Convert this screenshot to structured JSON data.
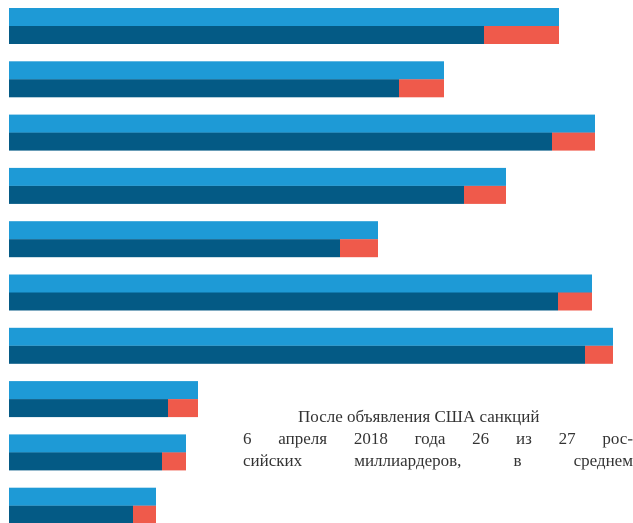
{
  "chart_data": {
    "type": "bar",
    "orientation": "horizontal",
    "xlim": [
      0,
      604
    ],
    "series": [
      {
        "color": "#1e9ad6",
        "values": [
          550,
          435,
          586,
          497,
          369,
          583,
          604,
          189,
          177,
          147
        ]
      },
      {
        "color": "#045a85",
        "values": [
          475,
          390,
          543,
          455,
          331,
          549,
          576,
          159,
          153,
          124
        ]
      },
      {
        "color": "#ef5a4b",
        "values": [
          75,
          45,
          43,
          42,
          38,
          34,
          28,
          30,
          24,
          23
        ]
      }
    ]
  },
  "text": {
    "lines": [
      "После объявления США санкций",
      "6 апреля 2018 года 26 из 27 рос-",
      "сийских миллиардеров, в среднем"
    ]
  }
}
